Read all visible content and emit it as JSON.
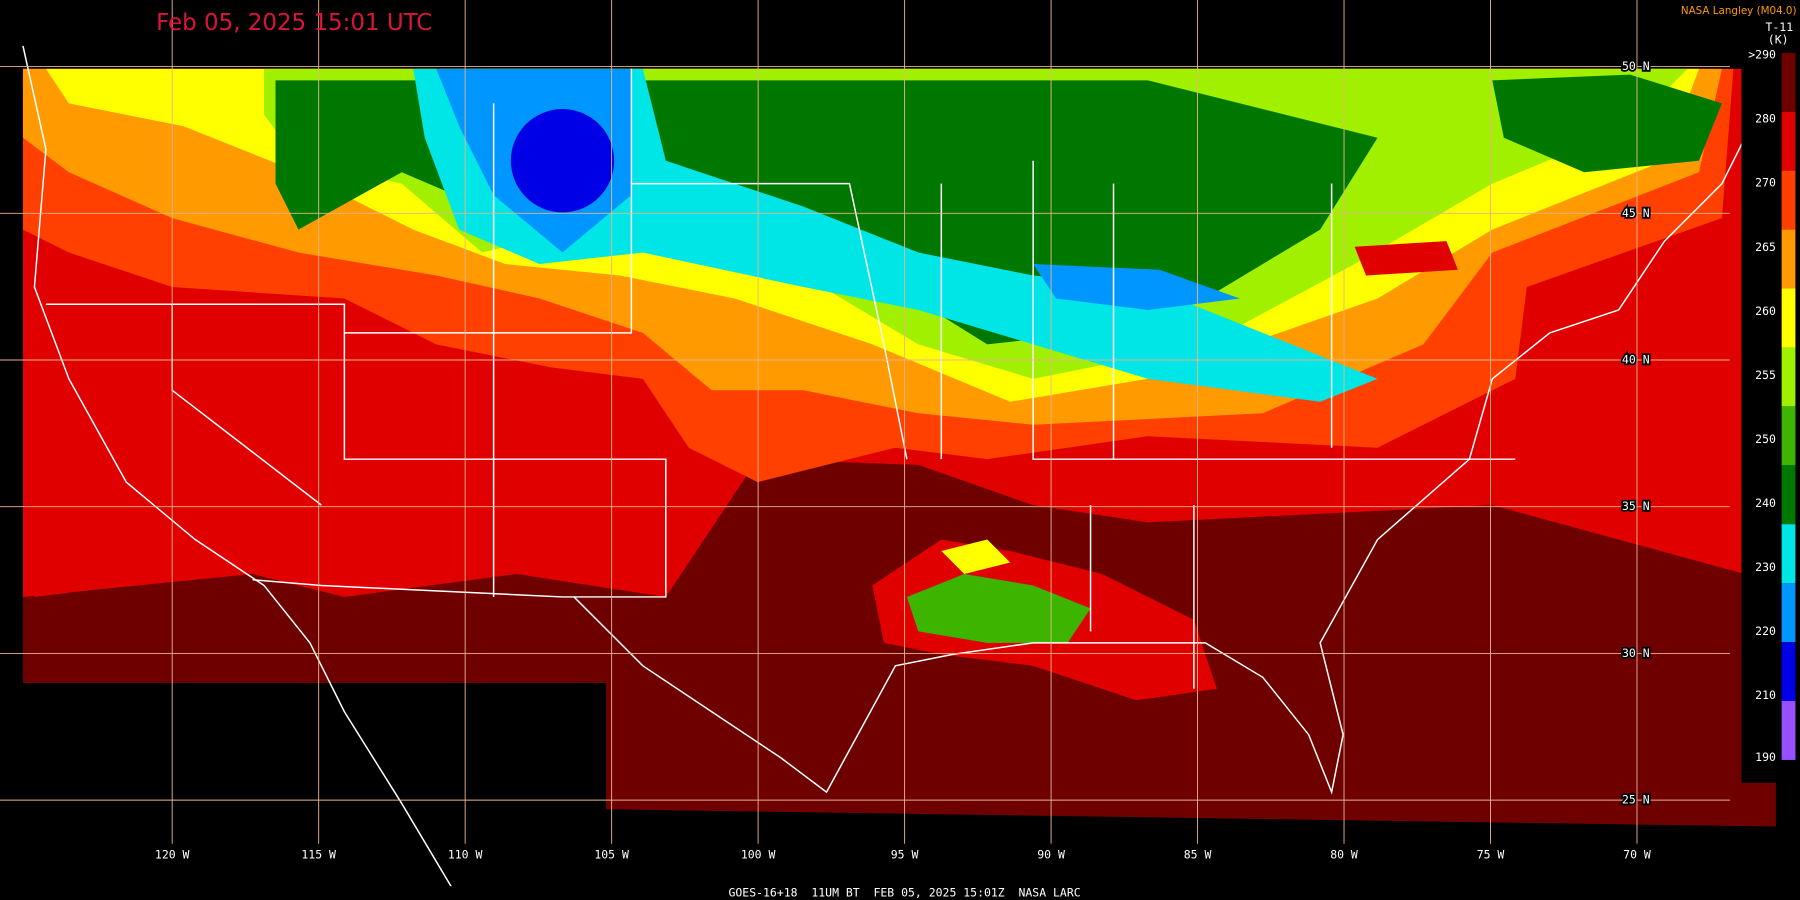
{
  "header": {
    "title": "Feb 05, 2025 15:01 UTC",
    "credit": "NASA Langley (M04.0)",
    "product": "T-11",
    "unit": "(K)"
  },
  "colorbar": [
    {
      "label": ">290",
      "color": "#6e0000"
    },
    {
      "label": "280",
      "color": "#e00000"
    },
    {
      "label": "270",
      "color": "#ff4000"
    },
    {
      "label": "265",
      "color": "#ff9a00"
    },
    {
      "label": "260",
      "color": "#ffff00"
    },
    {
      "label": "255",
      "color": "#a0f000"
    },
    {
      "label": "250",
      "color": "#3cb400"
    },
    {
      "label": "240",
      "color": "#007800"
    },
    {
      "label": "230",
      "color": "#00e6e6"
    },
    {
      "label": "220",
      "color": "#0096ff"
    },
    {
      "label": "210",
      "color": "#0000e6"
    },
    {
      "label": "190",
      "color": "#9650ff"
    }
  ],
  "latitudes": [
    "50 N",
    "45 N",
    "40 N",
    "35 N",
    "30 N",
    "25 N"
  ],
  "longitudes": [
    "120 W",
    "115 W",
    "110 W",
    "105 W",
    "100 W",
    "95 W",
    "90 W",
    "85 W",
    "80 W",
    "75 W",
    "70 W"
  ],
  "footer": "GOES-16+18  11UM BT  FEB 05, 2025 15:01Z  NASA LARC"
}
